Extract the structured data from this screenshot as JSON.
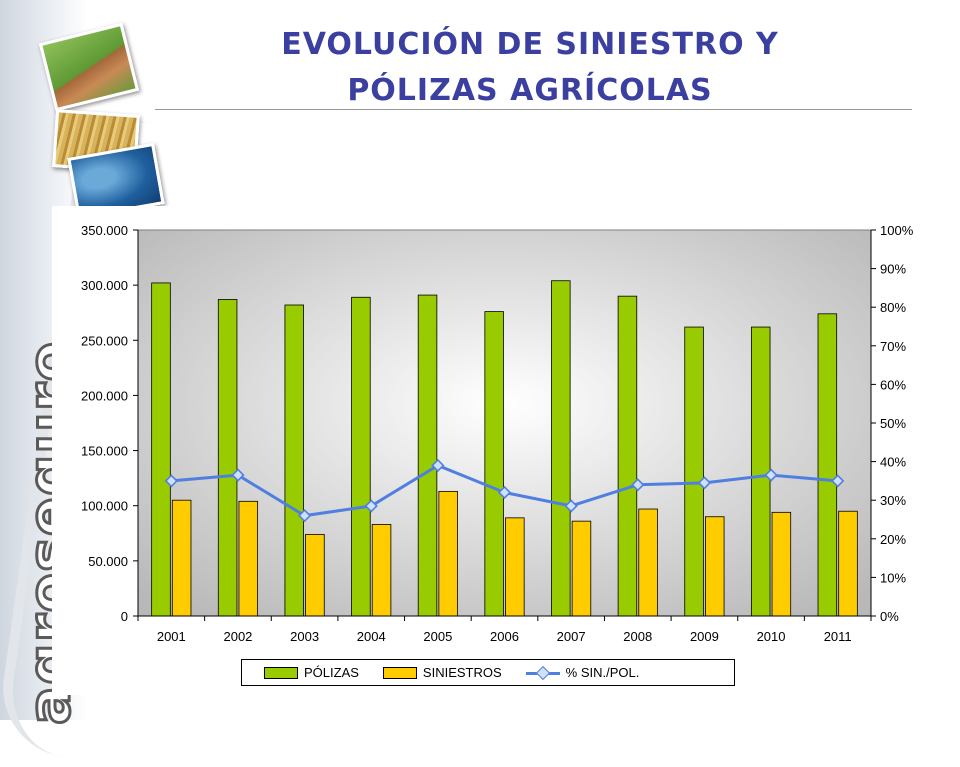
{
  "header": {
    "title_line1": "EVOLUCIÓN DE SINIESTRO Y",
    "title_line2": "PÓLIZAS AGRÍCOLAS"
  },
  "brand": {
    "name": "agroseguro"
  },
  "colors": {
    "title": "#3a3fa0",
    "polizas": "#99cc00",
    "siniestros": "#ffcc00",
    "ratio_line": "#4f7fe0"
  },
  "chart_data": {
    "type": "bar",
    "categories": [
      "2001",
      "2002",
      "2003",
      "2004",
      "2005",
      "2006",
      "2007",
      "2008",
      "2009",
      "2010",
      "2011"
    ],
    "series": [
      {
        "name": "PÓLIZAS",
        "type": "bar",
        "axis": "left",
        "values": [
          302000,
          287000,
          282000,
          289000,
          291000,
          276000,
          304000,
          290000,
          262000,
          262000,
          274000
        ]
      },
      {
        "name": "SINIESTROS",
        "type": "bar",
        "axis": "left",
        "values": [
          105000,
          104000,
          74000,
          83000,
          113000,
          89000,
          86000,
          97000,
          90000,
          94000,
          95000
        ]
      },
      {
        "name": "% SIN./POL.",
        "type": "line",
        "axis": "right",
        "values": [
          35,
          36.5,
          26,
          28.5,
          39,
          32,
          28.5,
          34,
          34.5,
          36.5,
          35
        ]
      }
    ],
    "y_left": {
      "ylim": [
        0,
        350000
      ],
      "ticks": [
        "0",
        "50.000",
        "100.000",
        "150.000",
        "200.000",
        "250.000",
        "300.000",
        "350.000"
      ]
    },
    "y_right": {
      "ylim": [
        0,
        100
      ],
      "ticks": [
        "0%",
        "10%",
        "20%",
        "30%",
        "40%",
        "50%",
        "60%",
        "70%",
        "80%",
        "90%",
        "100%"
      ]
    },
    "legend": "bottom",
    "grid": false
  }
}
